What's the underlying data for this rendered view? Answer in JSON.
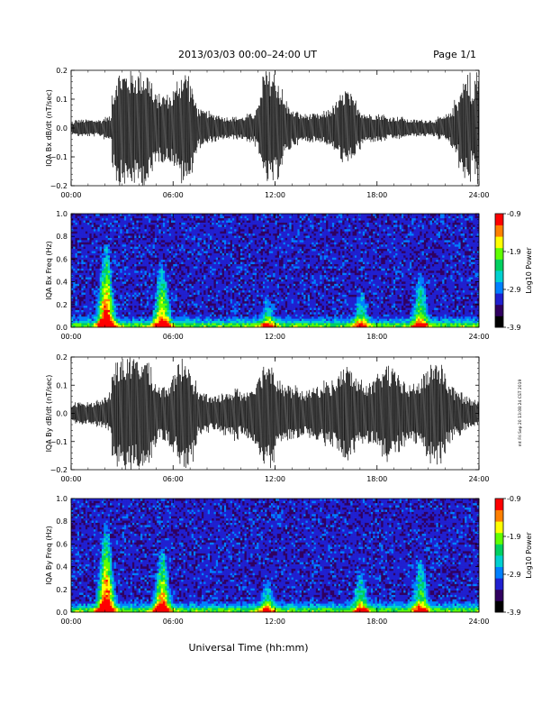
{
  "header": {
    "title": "2013/03/03  00:00–24:00 UT",
    "page": "Page 1/1"
  },
  "footer_label": "Universal Time (hh:mm)",
  "side_note": "mt Fri Sep 20 13:08:24 CST 2019",
  "chart_data": [
    {
      "type": "line",
      "ylabel": "IQA Bx dB/dt (nT/sec)",
      "ylim": [
        -0.2,
        0.2
      ],
      "yticks": [
        "0.2",
        "0.1",
        "0.0",
        "−0.1",
        "−0.2"
      ],
      "xlim": [
        "00:00",
        "24:00"
      ],
      "xticks": [
        "00:00",
        "06:00",
        "12:00",
        "18:00",
        "24:00"
      ],
      "series": [
        {
          "values": [
            0.02,
            0.03,
            0.03,
            0.03,
            0.03,
            0.03,
            0.03,
            0.03,
            0.04,
            0.04,
            0.14,
            0.2,
            0.2,
            0.2,
            0.2,
            0.2,
            0.2,
            0.2,
            0.2,
            0.18,
            0.12,
            0.12,
            0.12,
            0.12,
            0.12,
            0.14,
            0.18,
            0.2,
            0.2,
            0.16,
            0.1,
            0.07,
            0.06,
            0.06,
            0.05,
            0.05,
            0.05,
            0.04,
            0.04,
            0.04,
            0.04,
            0.04,
            0.04,
            0.05,
            0.05,
            0.07,
            0.12,
            0.2,
            0.2,
            0.2,
            0.18,
            0.14,
            0.1,
            0.08,
            0.06,
            0.06,
            0.05,
            0.05,
            0.05,
            0.05,
            0.05,
            0.05,
            0.06,
            0.07,
            0.08,
            0.1,
            0.12,
            0.14,
            0.12,
            0.1,
            0.08,
            0.06,
            0.05,
            0.05,
            0.05,
            0.05,
            0.05,
            0.04,
            0.04,
            0.04,
            0.04,
            0.04,
            0.03,
            0.03,
            0.03,
            0.03,
            0.03,
            0.03,
            0.03,
            0.03,
            0.04,
            0.04,
            0.05,
            0.07,
            0.1,
            0.14,
            0.18,
            0.2,
            0.12,
            0.2
          ],
          "min_values": [
            -0.02,
            -0.03,
            -0.03,
            -0.03,
            -0.03,
            -0.03,
            -0.03,
            -0.03,
            -0.04,
            -0.04,
            -0.14,
            -0.2,
            -0.2,
            -0.2,
            -0.2,
            -0.2,
            -0.2,
            -0.2,
            -0.2,
            -0.18,
            -0.12,
            -0.12,
            -0.12,
            -0.12,
            -0.12,
            -0.14,
            -0.18,
            -0.2,
            -0.2,
            -0.16,
            -0.1,
            -0.07,
            -0.06,
            -0.06,
            -0.05,
            -0.05,
            -0.05,
            -0.04,
            -0.04,
            -0.04,
            -0.04,
            -0.04,
            -0.04,
            -0.05,
            -0.05,
            -0.07,
            -0.12,
            -0.2,
            -0.2,
            -0.2,
            -0.18,
            -0.14,
            -0.1,
            -0.08,
            -0.06,
            -0.06,
            -0.05,
            -0.05,
            -0.05,
            -0.05,
            -0.05,
            -0.05,
            -0.06,
            -0.07,
            -0.08,
            -0.1,
            -0.12,
            -0.14,
            -0.12,
            -0.1,
            -0.08,
            -0.06,
            -0.05,
            -0.05,
            -0.05,
            -0.05,
            -0.05,
            -0.04,
            -0.04,
            -0.04,
            -0.04,
            -0.04,
            -0.03,
            -0.03,
            -0.03,
            -0.03,
            -0.03,
            -0.03,
            -0.03,
            -0.03,
            -0.04,
            -0.04,
            -0.05,
            -0.07,
            -0.1,
            -0.14,
            -0.18,
            -0.2,
            -0.12,
            -0.2
          ]
        }
      ]
    },
    {
      "type": "heatmap",
      "ylabel": "IQA Bx Freq (Hz)",
      "ylim": [
        0.0,
        1.0
      ],
      "yticks": [
        "1.0",
        "0.8",
        "0.6",
        "0.4",
        "0.2",
        "0.0"
      ],
      "xlim": [
        "00:00",
        "24:00"
      ],
      "xticks": [
        "00:00",
        "06:00",
        "12:00",
        "18:00",
        "24:00"
      ],
      "colorbar": {
        "label": "Log10 Power",
        "range": [
          -3.9,
          -0.9
        ],
        "ticks": [
          "-0.9",
          "-1.9",
          "-2.9",
          "-3.9"
        ],
        "colors": [
          "#000000",
          "#300060",
          "#2020d0",
          "#0080ff",
          "#00d0d0",
          "#00d060",
          "#60ff00",
          "#ffff00",
          "#ff8000",
          "#ff0000"
        ]
      },
      "events": [
        {
          "time_h": 2.0,
          "intensity": 1.0,
          "max_freq": 0.75
        },
        {
          "time_h": 5.3,
          "intensity": 0.8,
          "max_freq": 0.6
        },
        {
          "time_h": 11.5,
          "intensity": 0.5,
          "max_freq": 0.3
        },
        {
          "time_h": 17.0,
          "intensity": 0.5,
          "max_freq": 0.35
        },
        {
          "time_h": 20.5,
          "intensity": 0.6,
          "max_freq": 0.5
        }
      ]
    },
    {
      "type": "line",
      "ylabel": "IQA By dB/dt (nT/sec)",
      "ylim": [
        -0.2,
        0.2
      ],
      "yticks": [
        "0.2",
        "0.1",
        "0.0",
        "−0.1",
        "−0.2"
      ],
      "xlim": [
        "00:00",
        "24:00"
      ],
      "xticks": [
        "00:00",
        "06:00",
        "12:00",
        "18:00",
        "24:00"
      ],
      "series": [
        {
          "values": [
            0.03,
            0.04,
            0.04,
            0.04,
            0.04,
            0.04,
            0.05,
            0.05,
            0.06,
            0.08,
            0.16,
            0.2,
            0.2,
            0.2,
            0.2,
            0.2,
            0.2,
            0.2,
            0.2,
            0.18,
            0.12,
            0.1,
            0.1,
            0.1,
            0.12,
            0.14,
            0.18,
            0.2,
            0.2,
            0.18,
            0.12,
            0.08,
            0.07,
            0.07,
            0.06,
            0.06,
            0.07,
            0.08,
            0.07,
            0.08,
            0.1,
            0.08,
            0.08,
            0.09,
            0.1,
            0.12,
            0.16,
            0.18,
            0.2,
            0.18,
            0.14,
            0.12,
            0.1,
            0.1,
            0.09,
            0.1,
            0.08,
            0.08,
            0.09,
            0.09,
            0.1,
            0.1,
            0.12,
            0.11,
            0.12,
            0.14,
            0.16,
            0.18,
            0.16,
            0.14,
            0.12,
            0.12,
            0.11,
            0.11,
            0.12,
            0.14,
            0.16,
            0.18,
            0.16,
            0.15,
            0.14,
            0.12,
            0.1,
            0.1,
            0.11,
            0.12,
            0.14,
            0.16,
            0.18,
            0.2,
            0.18,
            0.16,
            0.12,
            0.1,
            0.08,
            0.08,
            0.06,
            0.06,
            0.05,
            0.05
          ],
          "min_values": [
            -0.03,
            -0.04,
            -0.04,
            -0.04,
            -0.04,
            -0.04,
            -0.05,
            -0.05,
            -0.06,
            -0.08,
            -0.16,
            -0.2,
            -0.2,
            -0.2,
            -0.2,
            -0.2,
            -0.2,
            -0.2,
            -0.2,
            -0.18,
            -0.12,
            -0.1,
            -0.1,
            -0.1,
            -0.12,
            -0.14,
            -0.18,
            -0.2,
            -0.2,
            -0.18,
            -0.12,
            -0.08,
            -0.07,
            -0.07,
            -0.06,
            -0.06,
            -0.07,
            -0.08,
            -0.07,
            -0.08,
            -0.1,
            -0.08,
            -0.08,
            -0.09,
            -0.1,
            -0.12,
            -0.16,
            -0.18,
            -0.2,
            -0.18,
            -0.14,
            -0.12,
            -0.1,
            -0.1,
            -0.09,
            -0.1,
            -0.08,
            -0.08,
            -0.09,
            -0.09,
            -0.1,
            -0.1,
            -0.12,
            -0.11,
            -0.12,
            -0.14,
            -0.16,
            -0.18,
            -0.16,
            -0.14,
            -0.12,
            -0.12,
            -0.11,
            -0.11,
            -0.12,
            -0.14,
            -0.16,
            -0.18,
            -0.16,
            -0.15,
            -0.14,
            -0.12,
            -0.1,
            -0.1,
            -0.11,
            -0.12,
            -0.14,
            -0.16,
            -0.18,
            -0.2,
            -0.18,
            -0.16,
            -0.12,
            -0.1,
            -0.08,
            -0.08,
            -0.06,
            -0.06,
            -0.05,
            -0.05
          ]
        }
      ]
    },
    {
      "type": "heatmap",
      "ylabel": "IQA By Freq (Hz)",
      "ylim": [
        0.0,
        1.0
      ],
      "yticks": [
        "1.0",
        "0.8",
        "0.6",
        "0.4",
        "0.2",
        "0.0"
      ],
      "xlim": [
        "00:00",
        "24:00"
      ],
      "xticks": [
        "00:00",
        "06:00",
        "12:00",
        "18:00",
        "24:00"
      ],
      "colorbar": {
        "label": "Log10 Power",
        "range": [
          -3.9,
          -0.9
        ],
        "ticks": [
          "-0.9",
          "-1.9",
          "-2.9",
          "-3.9"
        ],
        "colors": [
          "#000000",
          "#300060",
          "#2020d0",
          "#0080ff",
          "#00d0d0",
          "#00d060",
          "#60ff00",
          "#ffff00",
          "#ff8000",
          "#ff0000"
        ]
      },
      "events": [
        {
          "time_h": 2.0,
          "intensity": 1.0,
          "max_freq": 0.8
        },
        {
          "time_h": 5.3,
          "intensity": 0.85,
          "max_freq": 0.6
        },
        {
          "time_h": 11.5,
          "intensity": 0.5,
          "max_freq": 0.3
        },
        {
          "time_h": 17.0,
          "intensity": 0.55,
          "max_freq": 0.4
        },
        {
          "time_h": 20.5,
          "intensity": 0.6,
          "max_freq": 0.5
        }
      ]
    }
  ]
}
